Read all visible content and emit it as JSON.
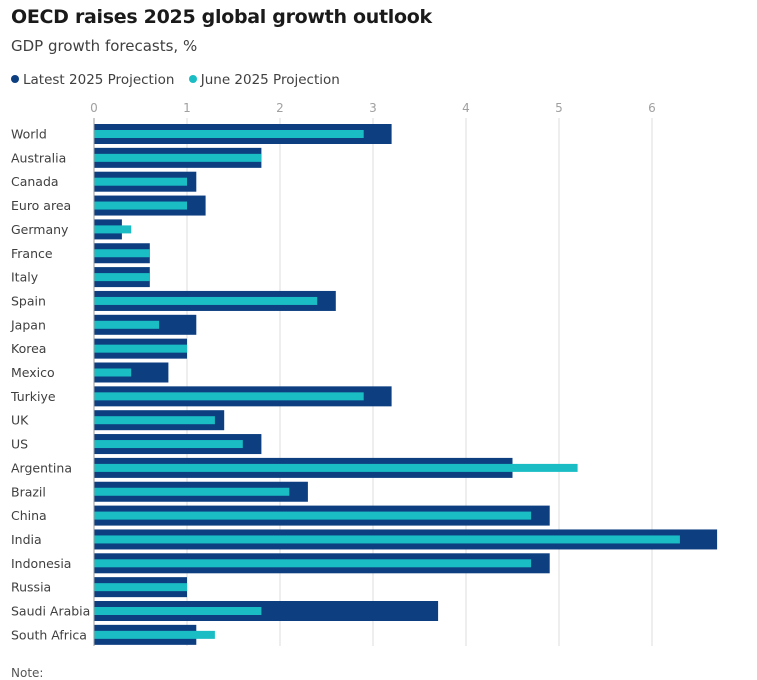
{
  "chart_data": {
    "type": "bar",
    "orientation": "horizontal",
    "title": "OECD raises 2025 global growth outlook",
    "subtitle": "GDP growth forecasts, %",
    "legend_position": "top-left",
    "grid": true,
    "xlim": [
      0,
      6.7
    ],
    "xticks": [
      0,
      1,
      2,
      3,
      4,
      5,
      6
    ],
    "categories": [
      "World",
      "Australia",
      "Canada",
      "Euro area",
      "Germany",
      "France",
      "Italy",
      "Spain",
      "Japan",
      "Korea",
      "Mexico",
      "Turkiye",
      "UK",
      "US",
      "Argentina",
      "Brazil",
      "China",
      "India",
      "Indonesia",
      "Russia",
      "Saudi Arabia",
      "South Africa"
    ],
    "series": [
      {
        "name": "Latest 2025 Projection",
        "color": "#0d3f80",
        "values": [
          3.2,
          1.8,
          1.1,
          1.2,
          0.3,
          0.6,
          0.6,
          2.6,
          1.1,
          1.0,
          0.8,
          3.2,
          1.4,
          1.8,
          4.5,
          2.3,
          4.9,
          6.7,
          4.9,
          1.0,
          3.7,
          1.1
        ]
      },
      {
        "name": "June 2025 Projection",
        "color": "#1bbdc4",
        "values": [
          2.9,
          1.8,
          1.0,
          1.0,
          0.4,
          0.6,
          0.6,
          2.4,
          0.7,
          1.0,
          0.4,
          2.9,
          1.3,
          1.6,
          5.2,
          2.1,
          4.7,
          6.3,
          4.7,
          1.0,
          1.8,
          1.3
        ]
      }
    ]
  },
  "note": "Note:"
}
